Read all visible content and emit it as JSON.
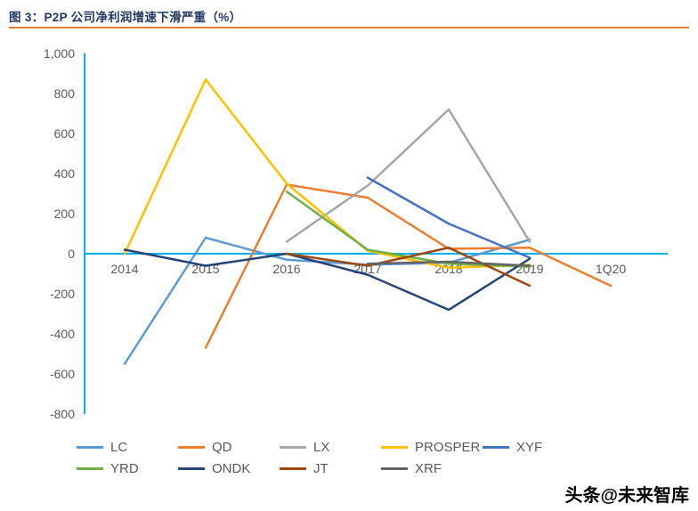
{
  "header": {
    "title": "图 3：P2P 公司净利润增速下滑严重（%）",
    "rule_color": "#ED7D31"
  },
  "watermark": "头条@未来智库",
  "chart_data": {
    "type": "line",
    "title": "P2P 公司净利润增速下滑严重（%）",
    "categories": [
      "2014",
      "2015",
      "2016",
      "2017",
      "2018",
      "2019",
      "1Q20"
    ],
    "xlabel": "",
    "ylabel": "",
    "ylim": [
      -800,
      1000
    ],
    "ytick_step": 200,
    "yticks": [
      "1,000",
      "800",
      "600",
      "400",
      "200",
      "0",
      "-200",
      "-400",
      "-600",
      "-800"
    ],
    "grid": false,
    "legend_position": "bottom",
    "axis_color": "#00B0F0",
    "label_color": "#595959",
    "series": [
      {
        "name": "LC",
        "color": "#5B9BD5",
        "values": [
          -550,
          80,
          -30,
          -55,
          -45,
          70,
          null
        ]
      },
      {
        "name": "QD",
        "color": "#ED7D31",
        "values": [
          null,
          -470,
          345,
          280,
          25,
          30,
          -160
        ]
      },
      {
        "name": "LX",
        "color": "#A5A5A5",
        "values": [
          null,
          null,
          60,
          340,
          720,
          60,
          null
        ]
      },
      {
        "name": "PROSPER",
        "color": "#FFC000",
        "values": [
          0,
          870,
          350,
          15,
          -70,
          -55,
          null
        ]
      },
      {
        "name": "XYF",
        "color": "#4472C4",
        "values": [
          null,
          null,
          null,
          380,
          150,
          -20,
          null
        ]
      },
      {
        "name": "YRD",
        "color": "#70AD47",
        "values": [
          null,
          null,
          310,
          20,
          -50,
          -65,
          null
        ]
      },
      {
        "name": "ONDK",
        "color": "#264478",
        "values": [
          20,
          -60,
          0,
          -105,
          -280,
          -25,
          null
        ]
      },
      {
        "name": "JT",
        "color": "#9E480E",
        "values": [
          null,
          null,
          0,
          -60,
          30,
          -160,
          null
        ]
      },
      {
        "name": "XRF",
        "color": "#636363",
        "values": [
          null,
          null,
          null,
          -50,
          -40,
          -60,
          null
        ]
      }
    ],
    "legend_rows": [
      [
        "LC",
        "QD",
        "LX",
        "PROSPER",
        "XYF"
      ],
      [
        "YRD",
        "ONDK",
        "JT",
        "XRF"
      ]
    ]
  }
}
